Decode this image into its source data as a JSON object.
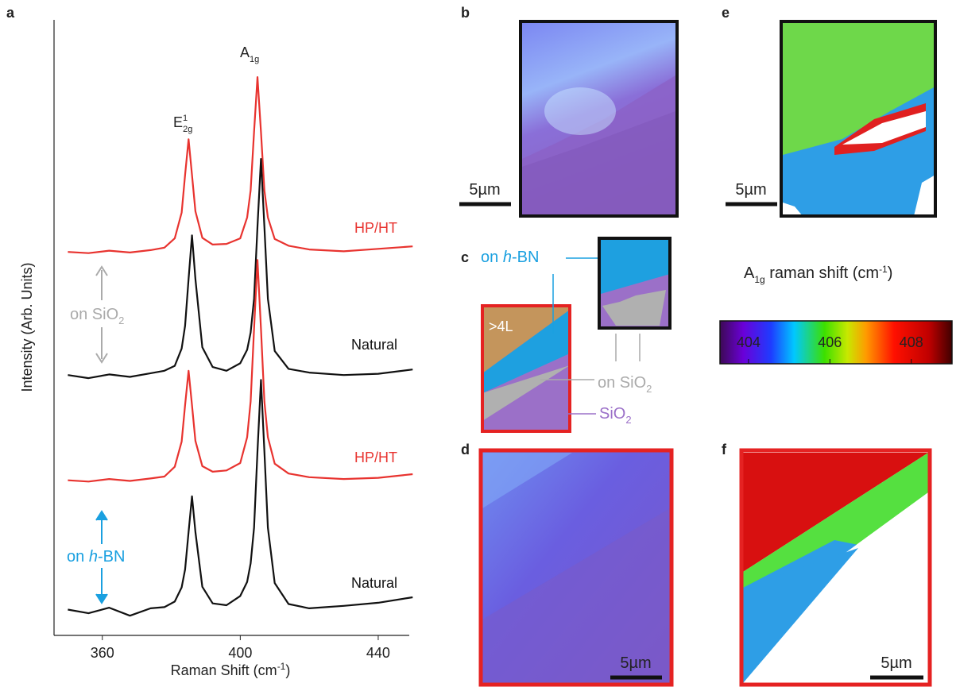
{
  "panel_labels": [
    "a",
    "b",
    "c",
    "d",
    "e",
    "f"
  ],
  "chart_data": {
    "type": "line",
    "y_label": "Intensity (Arb. Units)",
    "x_label": {
      "text": "Raman Shift (cm",
      "sup": "-1",
      "close": ")"
    },
    "peak_labels": [
      {
        "main": "E",
        "sup": "1",
        "sub": "2g"
      },
      {
        "main": "A",
        "sub": "1g"
      }
    ],
    "xlim": [
      346,
      449
    ],
    "xticks": [
      360,
      400,
      440
    ],
    "ylim": [
      0,
      100
    ],
    "x": [
      350,
      356,
      362,
      368,
      374,
      378,
      381,
      383,
      384,
      385,
      386,
      387,
      389,
      392,
      396,
      400,
      402,
      403,
      404,
      405,
      406,
      407,
      408,
      410,
      414,
      420,
      430,
      440,
      450
    ],
    "series": [
      {
        "name": "HP/HT",
        "color": "#e8332f",
        "values": [
          62.3,
          62.1,
          62.5,
          62.2,
          62.6,
          63.0,
          64.5,
          68.7,
          74.8,
          80.6,
          74.8,
          68.9,
          64.6,
          63.5,
          63.6,
          64.5,
          67.9,
          72.3,
          81.8,
          90.7,
          81.8,
          72.3,
          67.9,
          64.4,
          63.3,
          62.7,
          62.4,
          62.8,
          63.2
        ]
      },
      {
        "name": "Natural",
        "color": "#111111",
        "values": [
          42.3,
          41.8,
          42.4,
          42.0,
          42.6,
          43.0,
          43.8,
          46.6,
          50.3,
          57.9,
          65.0,
          57.9,
          46.8,
          43.6,
          43.0,
          44.2,
          46.4,
          49.2,
          54.7,
          66.4,
          77.4,
          66.4,
          54.7,
          46.2,
          43.3,
          42.7,
          42.3,
          42.5,
          43.2
        ]
      },
      {
        "name": "HP/HT",
        "color": "#e8332f",
        "values": [
          25.2,
          25.0,
          25.4,
          25.1,
          25.5,
          25.8,
          27.4,
          31.5,
          37.4,
          43.0,
          37.4,
          31.6,
          27.5,
          26.6,
          26.8,
          28.0,
          32.2,
          38.0,
          49.8,
          61.0,
          49.8,
          38.0,
          32.2,
          27.9,
          26.3,
          25.7,
          25.4,
          25.6,
          26.2
        ]
      },
      {
        "name": "Natural",
        "color": "#111111",
        "values": [
          4.2,
          3.6,
          4.5,
          3.2,
          4.4,
          4.6,
          5.5,
          7.8,
          10.7,
          16.8,
          22.6,
          16.8,
          7.9,
          5.2,
          4.9,
          6.4,
          8.7,
          11.7,
          17.5,
          29.9,
          41.5,
          29.9,
          17.5,
          8.5,
          5.1,
          4.4,
          4.8,
          5.3,
          6.2
        ]
      }
    ],
    "annotations": {
      "on_sio2": {
        "text": "on SiO",
        "sub": "2"
      },
      "on_hbn": {
        "pre": "on ",
        "italic": "h",
        "post": "-BN"
      }
    }
  },
  "diagram_c": {
    "layers": ">4L",
    "on_hbn": {
      "pre": "on ",
      "italic": "h",
      "post": "-BN"
    },
    "on_sio2": {
      "text": "on SiO",
      "sub": "2"
    },
    "sio2": {
      "text": "SiO",
      "sub": "2"
    }
  },
  "scale_bars": [
    "5µm",
    "5µm",
    "5µm",
    "5µm"
  ],
  "colorbar": {
    "title": {
      "main": "A",
      "sub": "1g",
      "text": " raman shift (cm",
      "sup": "-1",
      "close": ")"
    },
    "lim": [
      403.3,
      409.0
    ],
    "ticks": [
      404,
      406,
      408
    ]
  }
}
